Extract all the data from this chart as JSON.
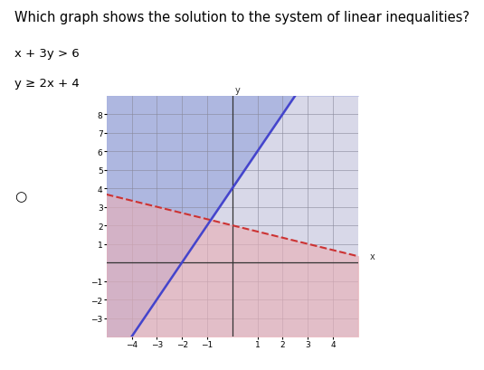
{
  "title": "Which graph shows the solution to the system of linear inequalities?",
  "eq1": "x + 3y > 6",
  "eq2": "y ≥ 2x + 4",
  "xlim": [
    -5,
    5
  ],
  "ylim": [
    -4,
    9
  ],
  "xticks": [
    -4,
    -3,
    -2,
    -1,
    1,
    2,
    3,
    4
  ],
  "yticks": [
    -3,
    -2,
    -1,
    1,
    2,
    3,
    4,
    5,
    6,
    7,
    8
  ],
  "line1_color": "#cc3333",
  "line2_color": "#4444cc",
  "shade1_color": "#e8b0b8",
  "shade2_color": "#aab4e0",
  "graph_bg": "#e8e8f0",
  "background_color": "#d8d8e8",
  "grid_color": "#888899",
  "title_fontsize": 10.5,
  "figsize": [
    5.35,
    4.1
  ],
  "dpi": 100
}
